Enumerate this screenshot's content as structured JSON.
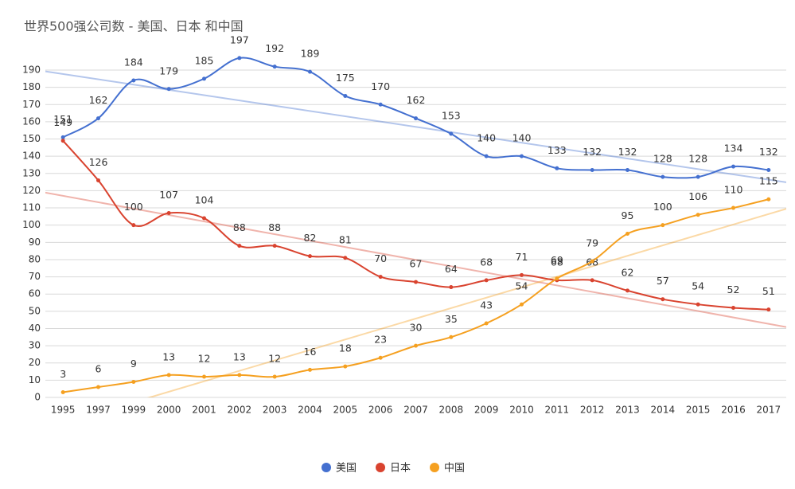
{
  "chart_data": {
    "type": "line",
    "title": "世界500强公司数 - 美国、日本 和中国",
    "categories": [
      "1995",
      "1997",
      "1999",
      "2000",
      "2001",
      "2002",
      "2003",
      "2004",
      "2005",
      "2006",
      "2007",
      "2008",
      "2009",
      "2010",
      "2011",
      "2012",
      "2013",
      "2014",
      "2015",
      "2016",
      "2017"
    ],
    "series": [
      {
        "name": "美国",
        "color": "#4470d0",
        "values": [
          151,
          162,
          184,
          179,
          185,
          197,
          192,
          189,
          175,
          170,
          162,
          153,
          140,
          140,
          133,
          132,
          132,
          128,
          128,
          134,
          132
        ]
      },
      {
        "name": "日本",
        "color": "#d9432f",
        "values": [
          149,
          126,
          100,
          107,
          104,
          88,
          88,
          82,
          81,
          70,
          67,
          64,
          68,
          71,
          68,
          68,
          62,
          57,
          54,
          52,
          51
        ]
      },
      {
        "name": "中国",
        "color": "#f5a020",
        "values": [
          3,
          6,
          9,
          13,
          12,
          13,
          12,
          16,
          18,
          23,
          30,
          35,
          43,
          54,
          69,
          79,
          95,
          100,
          106,
          110,
          115
        ]
      }
    ],
    "ylim": [
      0,
      190
    ],
    "yticks": [
      0,
      10,
      20,
      30,
      40,
      50,
      60,
      70,
      80,
      90,
      100,
      110,
      120,
      130,
      140,
      150,
      160,
      170,
      180,
      190
    ],
    "grid": true,
    "trendline": true,
    "smooth": true,
    "legend": "bottom"
  }
}
